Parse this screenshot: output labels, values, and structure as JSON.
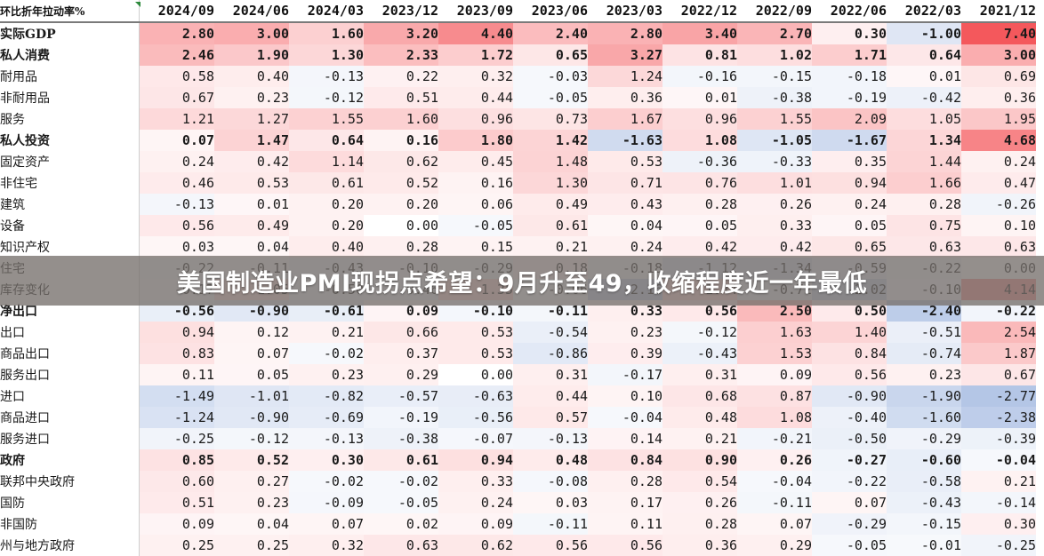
{
  "banner": {
    "headline": "美国制造业PMI现拐点希望：9月升至49，收缩程度近一年最低"
  },
  "table": {
    "corner_label": "环比折年拉动率%",
    "columns": [
      "2024/09",
      "2024/06",
      "2024/03",
      "2023/12",
      "2023/09",
      "2023/06",
      "2023/03",
      "2022/12",
      "2022/09",
      "2022/06",
      "2022/03",
      "2021/12"
    ],
    "rows": [
      {
        "label": "实际GDP",
        "level": 0,
        "bold": true,
        "values": [
          "2.80",
          "3.00",
          "1.60",
          "3.20",
          "4.40",
          "2.40",
          "2.80",
          "3.40",
          "2.70",
          "0.30",
          "-1.00",
          "7.40"
        ]
      },
      {
        "label": "私人消费",
        "level": 1,
        "bold": true,
        "values": [
          "2.46",
          "1.90",
          "1.30",
          "2.33",
          "1.72",
          "0.65",
          "3.27",
          "0.81",
          "1.02",
          "1.71",
          "0.64",
          "3.00"
        ]
      },
      {
        "label": "耐用品",
        "level": 2,
        "bold": false,
        "values": [
          "0.58",
          "0.40",
          "-0.13",
          "0.22",
          "0.32",
          "-0.03",
          "1.24",
          "-0.16",
          "-0.15",
          "-0.18",
          "0.01",
          "0.69"
        ]
      },
      {
        "label": "非耐用品",
        "level": 2,
        "bold": false,
        "values": [
          "0.67",
          "0.23",
          "-0.12",
          "0.51",
          "0.44",
          "-0.05",
          "0.36",
          "0.01",
          "-0.38",
          "-0.19",
          "-0.42",
          "0.36"
        ]
      },
      {
        "label": "服务",
        "level": 2,
        "bold": false,
        "values": [
          "1.21",
          "1.27",
          "1.55",
          "1.60",
          "0.96",
          "0.73",
          "1.67",
          "0.96",
          "1.55",
          "2.09",
          "1.05",
          "1.95"
        ]
      },
      {
        "label": "私人投资",
        "level": 1,
        "bold": true,
        "values": [
          "0.07",
          "1.47",
          "0.64",
          "0.16",
          "1.80",
          "1.42",
          "-1.63",
          "1.08",
          "-1.05",
          "-1.67",
          "1.34",
          "4.68"
        ]
      },
      {
        "label": "固定资产",
        "level": 2,
        "bold": false,
        "values": [
          "0.24",
          "0.42",
          "1.14",
          "0.62",
          "0.45",
          "1.48",
          "0.53",
          "-0.36",
          "-0.33",
          "0.35",
          "1.44",
          "0.24"
        ]
      },
      {
        "label": "非住宅",
        "level": 3,
        "bold": false,
        "values": [
          "0.46",
          "0.53",
          "0.61",
          "0.52",
          "0.16",
          "1.30",
          "0.71",
          "0.76",
          "1.01",
          "0.94",
          "1.66",
          "0.47"
        ]
      },
      {
        "label": "建筑",
        "level": 4,
        "bold": false,
        "values": [
          "-0.13",
          "0.01",
          "0.20",
          "0.20",
          "0.06",
          "0.49",
          "0.43",
          "0.28",
          "0.26",
          "0.24",
          "0.28",
          "-0.26"
        ]
      },
      {
        "label": "设备",
        "level": 4,
        "bold": false,
        "values": [
          "0.56",
          "0.49",
          "0.20",
          "0.00",
          "-0.05",
          "0.61",
          "0.04",
          "0.05",
          "0.33",
          "0.05",
          "0.75",
          "0.10"
        ]
      },
      {
        "label": "知识产权",
        "level": 4,
        "bold": false,
        "values": [
          "0.03",
          "0.04",
          "0.40",
          "0.28",
          "0.15",
          "0.21",
          "0.24",
          "0.42",
          "0.42",
          "0.65",
          "0.63",
          "0.63"
        ]
      },
      {
        "label": "住宅",
        "level": 3,
        "bold": false,
        "values": [
          "-0.22",
          "-0.11",
          "-0.43",
          "-0.10",
          "-0.29",
          "0.18",
          "-0.18",
          "-1.12",
          "-1.34",
          "-0.59",
          "-0.22",
          "0.00"
        ]
      },
      {
        "label": "库存变化",
        "level": 2,
        "bold": false,
        "values": [
          "-0.17",
          "1.05",
          "-0.50",
          "-0.46",
          "1.35",
          "-0.06",
          "-2.16",
          "1.44",
          "-0.72",
          "-2.02",
          "-0.10",
          "4.14"
        ]
      },
      {
        "label": "净出口",
        "level": 1,
        "bold": true,
        "values": [
          "-0.56",
          "-0.90",
          "-0.61",
          "0.09",
          "-0.10",
          "-0.11",
          "0.33",
          "0.56",
          "2.50",
          "0.50",
          "-2.40",
          "-0.22"
        ]
      },
      {
        "label": "出口",
        "level": 2,
        "bold": false,
        "values": [
          "0.94",
          "0.12",
          "0.21",
          "0.66",
          "0.53",
          "-0.54",
          "0.23",
          "-0.12",
          "1.63",
          "1.40",
          "-0.51",
          "2.54"
        ]
      },
      {
        "label": "商品出口",
        "level": 3,
        "bold": false,
        "values": [
          "0.83",
          "0.07",
          "-0.02",
          "0.37",
          "0.53",
          "-0.86",
          "0.39",
          "-0.43",
          "1.53",
          "0.84",
          "-0.74",
          "1.87"
        ]
      },
      {
        "label": "服务出口",
        "level": 3,
        "bold": false,
        "values": [
          "0.11",
          "0.05",
          "0.23",
          "0.29",
          "0.00",
          "0.31",
          "-0.17",
          "0.31",
          "0.09",
          "0.56",
          "0.23",
          "0.67"
        ]
      },
      {
        "label": "进口",
        "level": 2,
        "bold": false,
        "values": [
          "-1.49",
          "-1.01",
          "-0.82",
          "-0.57",
          "-0.63",
          "0.44",
          "0.10",
          "0.68",
          "0.87",
          "-0.90",
          "-1.90",
          "-2.77"
        ]
      },
      {
        "label": "商品进口",
        "level": 3,
        "bold": false,
        "values": [
          "-1.24",
          "-0.90",
          "-0.69",
          "-0.19",
          "-0.56",
          "0.57",
          "-0.04",
          "0.48",
          "1.08",
          "-0.40",
          "-1.60",
          "-2.38"
        ]
      },
      {
        "label": "服务进口",
        "level": 3,
        "bold": false,
        "values": [
          "-0.25",
          "-0.12",
          "-0.13",
          "-0.38",
          "-0.07",
          "-0.13",
          "0.14",
          "0.21",
          "-0.21",
          "-0.50",
          "-0.29",
          "-0.39"
        ]
      },
      {
        "label": "政府",
        "level": 1,
        "bold": true,
        "values": [
          "0.85",
          "0.52",
          "0.30",
          "0.61",
          "0.94",
          "0.48",
          "0.84",
          "0.90",
          "0.26",
          "-0.27",
          "-0.60",
          "-0.04"
        ]
      },
      {
        "label": "联邦中央政府",
        "level": 2,
        "bold": false,
        "values": [
          "0.60",
          "0.27",
          "-0.02",
          "-0.02",
          "0.33",
          "-0.08",
          "0.28",
          "0.54",
          "-0.04",
          "-0.22",
          "-0.58",
          "0.21"
        ]
      },
      {
        "label": "国防",
        "level": 3,
        "bold": false,
        "values": [
          "0.51",
          "0.23",
          "-0.09",
          "-0.05",
          "0.24",
          "0.03",
          "0.17",
          "0.26",
          "-0.11",
          "0.07",
          "-0.43",
          "-0.14"
        ]
      },
      {
        "label": "非国防",
        "level": 3,
        "bold": false,
        "values": [
          "0.09",
          "0.04",
          "0.07",
          "0.02",
          "0.09",
          "-0.11",
          "0.11",
          "0.28",
          "0.07",
          "-0.29",
          "-0.15",
          "0.30"
        ]
      },
      {
        "label": "州与地方政府",
        "level": 2,
        "bold": false,
        "values": [
          "0.25",
          "0.25",
          "0.32",
          "0.63",
          "0.62",
          "0.56",
          "0.56",
          "0.36",
          "0.29",
          "-0.05",
          "-0.01",
          "-0.25"
        ]
      }
    ],
    "colors": {
      "positive": "#f4585c",
      "negative": "#5b82c9",
      "base": "#ffffff"
    }
  }
}
